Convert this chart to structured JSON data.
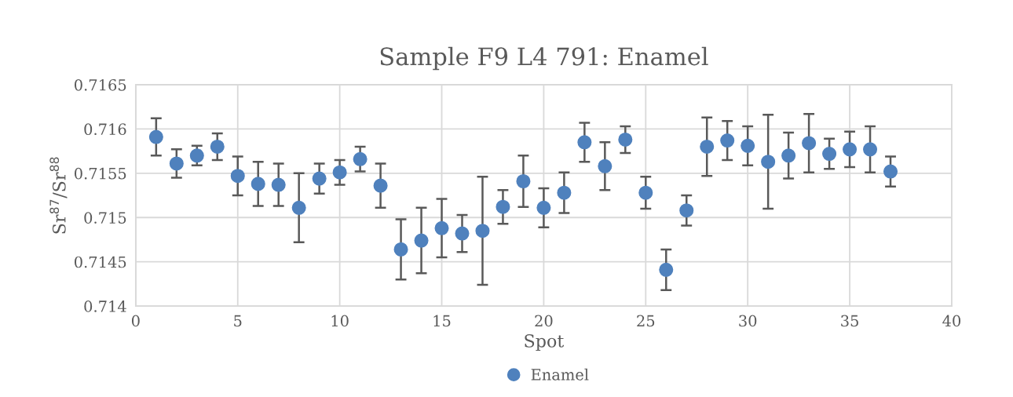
{
  "chart_data": {
    "type": "scatter",
    "title": "Sample F9 L4 791: Enamel",
    "xlabel": "Spot",
    "ylabel": "Sr$^{87}$/Sr$^{88}$",
    "x": [
      1,
      2,
      3,
      4,
      5,
      6,
      7,
      8,
      9,
      10,
      11,
      12,
      13,
      14,
      15,
      16,
      17,
      18,
      19,
      20,
      21,
      22,
      23,
      24,
      25,
      26,
      27,
      28,
      29,
      30,
      31,
      32,
      33,
      34,
      35,
      36,
      37
    ],
    "series": [
      {
        "name": "Enamel",
        "color": "#4f81bd",
        "values": [
          0.71591,
          0.71561,
          0.7157,
          0.7158,
          0.71547,
          0.71538,
          0.71537,
          0.71511,
          0.71544,
          0.71551,
          0.71566,
          0.71536,
          0.71464,
          0.71474,
          0.71488,
          0.71482,
          0.71485,
          0.71512,
          0.71541,
          0.71511,
          0.71528,
          0.71585,
          0.71558,
          0.71588,
          0.71528,
          0.71441,
          0.71508,
          0.7158,
          0.71587,
          0.71581,
          0.71563,
          0.7157,
          0.71584,
          0.71572,
          0.71577,
          0.71577,
          0.71552
        ],
        "errors": [
          0.00021,
          0.00016,
          0.00011,
          0.00015,
          0.00022,
          0.00025,
          0.00024,
          0.00039,
          0.00017,
          0.00014,
          0.00014,
          0.00025,
          0.00034,
          0.00037,
          0.00033,
          0.00021,
          0.00061,
          0.00019,
          0.00029,
          0.00022,
          0.00023,
          0.00022,
          0.00027,
          0.00015,
          0.00018,
          0.00023,
          0.00017,
          0.00033,
          0.00022,
          0.00022,
          0.00053,
          0.00026,
          0.00033,
          0.00017,
          0.0002,
          0.00026,
          0.00017
        ]
      }
    ],
    "xlim": [
      0,
      40
    ],
    "xticks": [
      0,
      5,
      10,
      15,
      20,
      25,
      30,
      35,
      40
    ],
    "ylim": [
      0.714,
      0.7165
    ],
    "yticks": [
      0.714,
      0.7145,
      0.715,
      0.7155,
      0.716,
      0.7165
    ],
    "grid": true,
    "legend": "bottom",
    "marker": "circle"
  }
}
